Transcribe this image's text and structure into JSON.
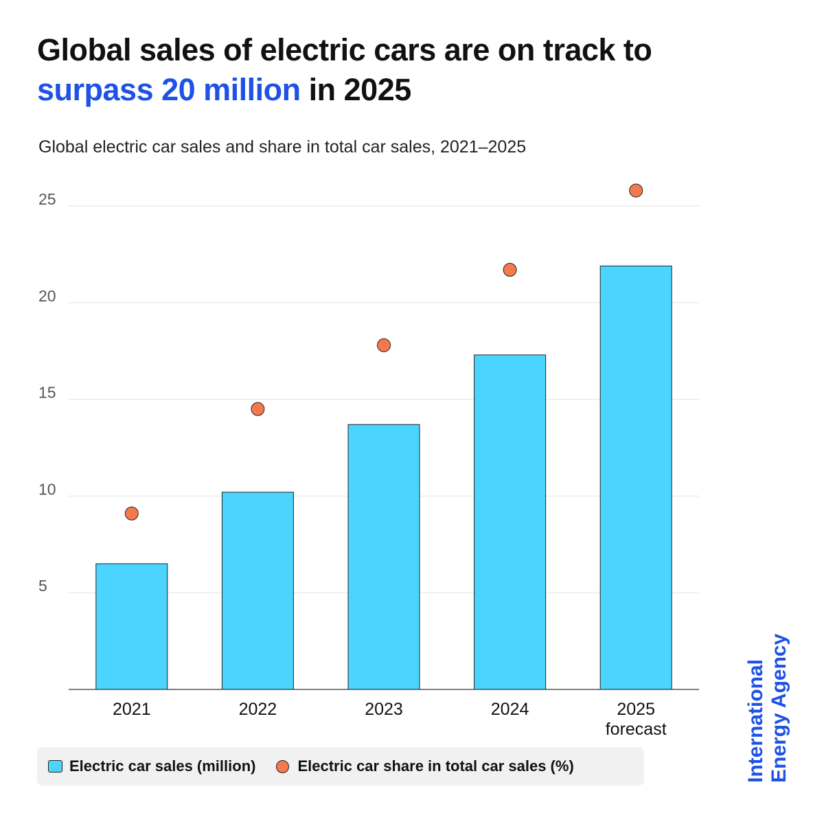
{
  "header": {
    "title_part1": "Global sales of electric cars are on track to",
    "title_accent": "surpass 20 million",
    "title_part2": " in 2025",
    "subtitle": "Global electric car sales and share in total car sales, 2021–2025"
  },
  "chart_data": {
    "type": "bar",
    "categories": [
      "2021",
      "2022",
      "2023",
      "2024",
      "2025"
    ],
    "category_sublabels": [
      "",
      "",
      "",
      "",
      "forecast"
    ],
    "series": [
      {
        "name": "Electric car sales (million)",
        "type": "bar",
        "color": "#4ad4fe",
        "values": [
          6.5,
          10.2,
          13.7,
          17.3,
          21.9
        ]
      },
      {
        "name": "Electric car share in total car sales (%)",
        "type": "scatter",
        "color": "#f47a4e",
        "values": [
          9.1,
          14.5,
          17.8,
          21.7,
          25.8
        ]
      }
    ],
    "ylim": [
      0,
      25
    ],
    "yticks": [
      "5",
      "10",
      "15",
      "20",
      "25"
    ],
    "grid": true,
    "legend": "bottom"
  },
  "legend": {
    "bar_label": "Electric car sales (million)",
    "dot_label": "Electric car share in total car sales (%)"
  },
  "brand": {
    "line1": "International",
    "line2": "Energy Agency"
  }
}
